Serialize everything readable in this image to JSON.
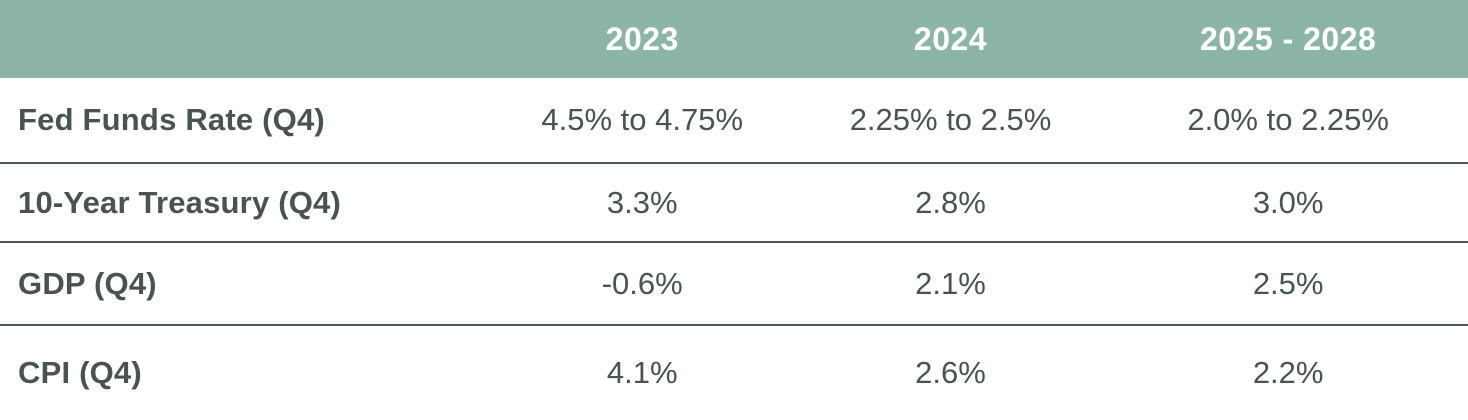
{
  "colors": {
    "header_bg": "#8db5a6",
    "header_text": "#ffffff",
    "body_text": "#49534f",
    "row_divider": "#4d5955",
    "background": "#ffffff"
  },
  "chart_data": {
    "type": "table",
    "columns": [
      "",
      "2023",
      "2024",
      "2025 - 2028"
    ],
    "rows": [
      {
        "label": "Fed Funds Rate (Q4)",
        "values": [
          "4.5% to 4.75%",
          "2.25% to 2.5%",
          "2.0% to 2.25%"
        ]
      },
      {
        "label": "10-Year Treasury (Q4)",
        "values": [
          "3.3%",
          "2.8%",
          "3.0%"
        ]
      },
      {
        "label": "GDP (Q4)",
        "values": [
          "-0.6%",
          "2.1%",
          "2.5%"
        ]
      },
      {
        "label": "CPI (Q4)",
        "values": [
          "4.1%",
          "2.6%",
          "2.2%"
        ]
      }
    ],
    "layout": {
      "header_position": "top",
      "grid": "horizontal-dividers-only",
      "label_alignment": "left",
      "value_alignment": "center"
    }
  }
}
